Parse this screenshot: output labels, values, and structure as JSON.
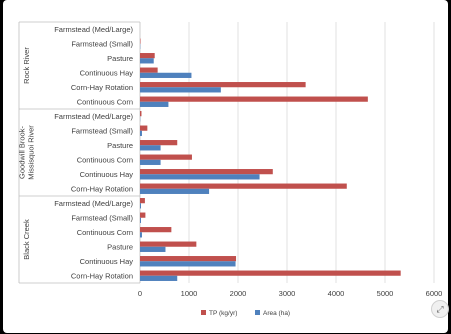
{
  "colors": {
    "tp": "#c0504d",
    "area": "#4f81bd",
    "grid": "#d9d9d9",
    "axis": "#bfbfbf"
  },
  "chart_data": {
    "type": "bar",
    "orientation": "horizontal",
    "xlim": [
      0,
      6000
    ],
    "x_ticks": [
      0,
      1000,
      2000,
      3000,
      4000,
      5000,
      6000
    ],
    "grid": true,
    "legend_position": "bottom",
    "groups": [
      {
        "name": "Rock River",
        "categories": [
          {
            "label": "Farmstead (Med/Large)",
            "tp": 0,
            "area": 0
          },
          {
            "label": "Farmstead (Small)",
            "tp": 10,
            "area": 5
          },
          {
            "label": "Pasture",
            "tp": 300,
            "area": 280
          },
          {
            "label": "Continuous Hay",
            "tp": 360,
            "area": 1050
          },
          {
            "label": "Corn-Hay Rotation",
            "tp": 3380,
            "area": 1650
          },
          {
            "label": "Continuous Corn",
            "tp": 4650,
            "area": 580
          }
        ]
      },
      {
        "name": "Goodwill Brook-Missisquoi River",
        "categories": [
          {
            "label": "Farmstead (Med/Large)",
            "tp": 30,
            "area": 5
          },
          {
            "label": "Farmstead (Small)",
            "tp": 150,
            "area": 40
          },
          {
            "label": "Pasture",
            "tp": 760,
            "area": 420
          },
          {
            "label": "Continuous Corn",
            "tp": 1060,
            "area": 420
          },
          {
            "label": "Continuous Hay",
            "tp": 2710,
            "area": 2440
          },
          {
            "label": "Corn-Hay Rotation",
            "tp": 4220,
            "area": 1410
          }
        ]
      },
      {
        "name": "Black Creek",
        "categories": [
          {
            "label": "Farmstead (Med/Large)",
            "tp": 100,
            "area": 20
          },
          {
            "label": "Farmstead (Small)",
            "tp": 110,
            "area": 20
          },
          {
            "label": "Continuous Corn",
            "tp": 640,
            "area": 40
          },
          {
            "label": "Pasture",
            "tp": 1150,
            "area": 520
          },
          {
            "label": "Continuous Hay",
            "tp": 1960,
            "area": 1950
          },
          {
            "label": "Corn-Hay Rotation",
            "tp": 5320,
            "area": 760
          }
        ]
      }
    ],
    "legend": [
      {
        "key": "tp",
        "label": "TP (kg/yr)"
      },
      {
        "key": "area",
        "label": "Area (ha)"
      }
    ]
  },
  "icons": {
    "resize": "expand-icon",
    "resize_glyph": "⤢"
  }
}
